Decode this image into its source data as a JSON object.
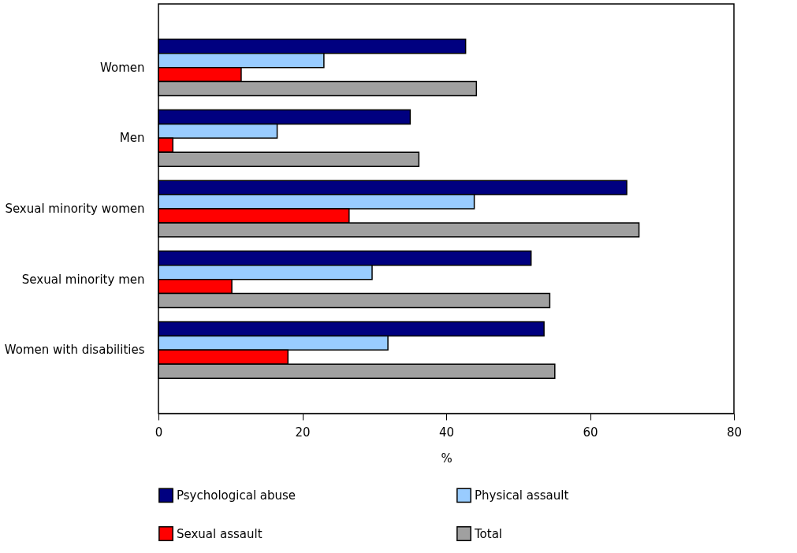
{
  "chart_data": {
    "type": "bar",
    "orientation": "horizontal",
    "xlabel": "%",
    "categories": [
      "Women",
      "Men",
      "Sexual minority women",
      "Sexual minority men",
      "Women with disabilities"
    ],
    "series": [
      {
        "name": "Psychological abuse",
        "color": "#000080",
        "values": [
          42.7,
          35.0,
          65.1,
          51.8,
          53.6
        ]
      },
      {
        "name": "Physical assault",
        "color": "#99ccff",
        "values": [
          23.0,
          16.5,
          43.9,
          29.7,
          31.9
        ]
      },
      {
        "name": "Sexual assault",
        "color": "#ff0000",
        "values": [
          11.5,
          2.0,
          26.5,
          10.2,
          18.0
        ]
      },
      {
        "name": "Total",
        "color": "#a0a0a0",
        "values": [
          44.2,
          36.2,
          66.8,
          54.4,
          55.1
        ]
      }
    ],
    "xlim": [
      0,
      80
    ],
    "xticks": [
      0,
      20,
      40,
      60,
      80
    ],
    "grid": false,
    "legend": "bottom"
  }
}
